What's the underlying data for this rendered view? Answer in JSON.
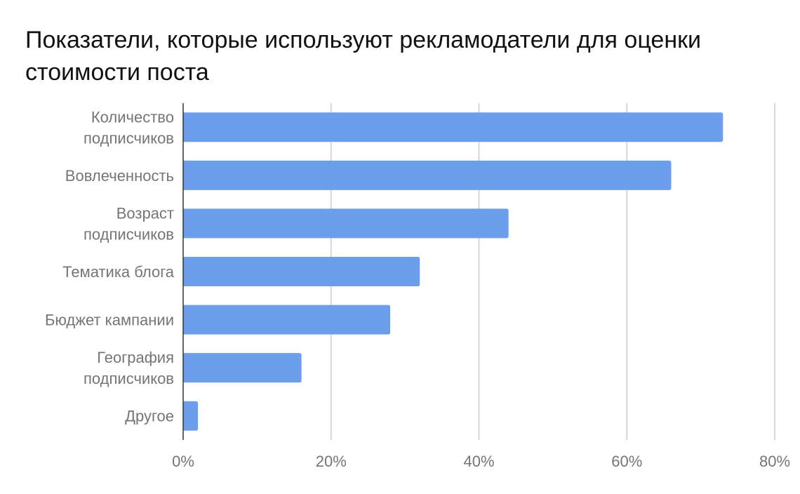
{
  "chart_data": {
    "type": "bar",
    "orientation": "horizontal",
    "title": "Показатели, которые используют рекламодатели для оценки стоимости поста",
    "categories": [
      "Количество подписчиков",
      "Вовлеченность",
      "Возраст подписчиков",
      "Тематика блога",
      "Бюджет кампании",
      "География подписчиков",
      "Другое"
    ],
    "category_lines": [
      [
        "Количество",
        "подписчиков"
      ],
      [
        "Вовлеченность"
      ],
      [
        "Возраст",
        "подписчиков"
      ],
      [
        "Тематика блога"
      ],
      [
        "Бюджет кампании"
      ],
      [
        "География",
        "подписчиков"
      ],
      [
        "Другое"
      ]
    ],
    "values": [
      73,
      66,
      44,
      32,
      28,
      16,
      2
    ],
    "xlim": [
      0,
      80
    ],
    "ticks": [
      0,
      20,
      40,
      60,
      80
    ],
    "tick_labels": [
      "0%",
      "20%",
      "40%",
      "60%",
      "80%"
    ],
    "grid": true,
    "legend": "none",
    "bar_color": "#6d9eeb"
  }
}
